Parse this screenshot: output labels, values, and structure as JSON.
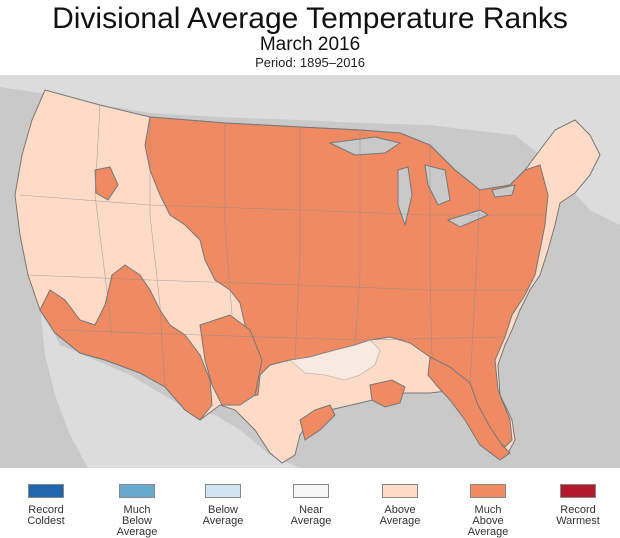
{
  "title": "Divisional Average Temperature Ranks",
  "subtitle": "March 2016",
  "period": "Period: 1895–2016",
  "colors": {
    "record_coldest": "#2166ac",
    "much_below": "#67a9cf",
    "below": "#d1e5f0",
    "near": "#f7f7f7",
    "above": "#fddbc7",
    "much_above": "#ef8a62",
    "record_warmest": "#b2182b",
    "land_other": "#dcdcdc",
    "ocean": "#c9c9c9",
    "border": "#777777"
  },
  "legend": {
    "items": [
      {
        "label": "Record\nColdest",
        "color": "#2166ac",
        "icon": "swatch"
      },
      {
        "label": "Much\nBelow\nAverage",
        "color": "#67a9cf",
        "icon": "swatch"
      },
      {
        "label": "Below\nAverage",
        "color": "#d1e5f0",
        "icon": "swatch"
      },
      {
        "label": "Near\nAverage",
        "color": "#f7f7f7",
        "icon": "swatch"
      },
      {
        "label": "Above\nAverage",
        "color": "#fddbc7",
        "icon": "swatch"
      },
      {
        "label": "Much\nAbove\nAverage",
        "color": "#ef8a62",
        "icon": "swatch"
      },
      {
        "label": "Record\nWarmest",
        "color": "#b2182b",
        "icon": "swatch"
      }
    ]
  }
}
